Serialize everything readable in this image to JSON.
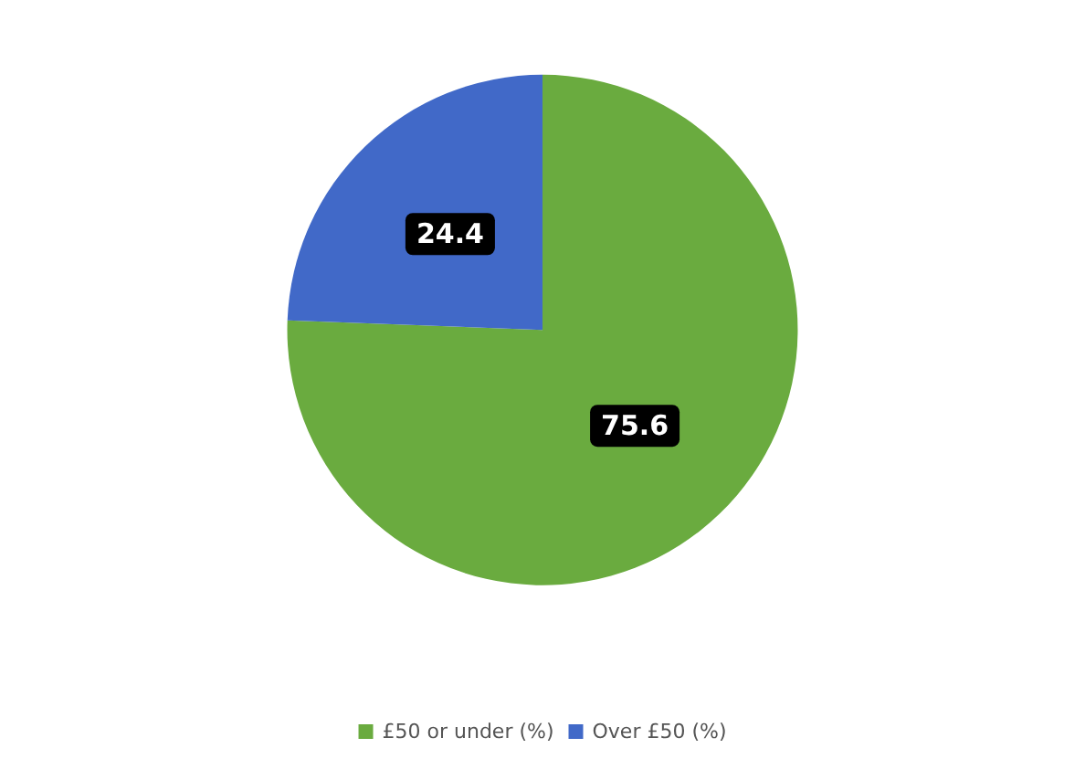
{
  "chart_data": {
    "type": "pie",
    "categories": [
      "£50 or under (%)",
      "Over £50 (%)"
    ],
    "values": [
      75.6,
      24.4
    ],
    "colors": [
      "#6aab3f",
      "#4169c8"
    ],
    "data_labels": true,
    "legend": "bottom"
  }
}
